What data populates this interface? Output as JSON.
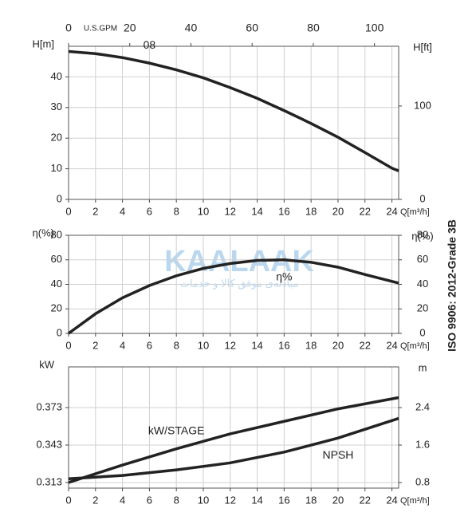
{
  "chart_data": [
    {
      "type": "line",
      "y_label": "H[m]",
      "y2_label": "H[ft]",
      "x_label": "Q[m³/h]",
      "x2_label": "U.S.GPM",
      "xlim": [
        0,
        24.5
      ],
      "xticks": [
        0,
        2,
        4,
        6,
        8,
        10,
        12,
        14,
        16,
        18,
        20,
        22,
        24
      ],
      "x2lim": [
        0,
        107.9
      ],
      "x2ticks": [
        0,
        20,
        40,
        60,
        80,
        100
      ],
      "ylim": [
        0,
        50
      ],
      "yticks": [
        0,
        10,
        20,
        30,
        40
      ],
      "y2lim": [
        0,
        164
      ],
      "y2ticks": [
        0,
        100
      ],
      "grid": true,
      "x": [
        0,
        2,
        4,
        6,
        8,
        10,
        12,
        14,
        16,
        18,
        20,
        22,
        24,
        24.5
      ],
      "series": [
        {
          "name": "08",
          "color": "#222222",
          "values": [
            48.3,
            47.6,
            46.3,
            44.5,
            42.3,
            39.7,
            36.5,
            33,
            29,
            24.8,
            20.3,
            15.3,
            10.2,
            9.3
          ]
        }
      ]
    },
    {
      "type": "line",
      "y_label": "η(%)",
      "y2_label": "η(%)",
      "x_label": "Q[m³/h]",
      "xlim": [
        0,
        24.5
      ],
      "xticks": [
        0,
        2,
        4,
        6,
        8,
        10,
        12,
        14,
        16,
        18,
        20,
        22,
        24
      ],
      "ylim": [
        0,
        80
      ],
      "yticks": [
        0,
        20,
        40,
        60,
        80
      ],
      "y2lim": [
        0,
        80
      ],
      "y2ticks": [
        0,
        20,
        40,
        60,
        80
      ],
      "grid": true,
      "x": [
        0,
        2,
        4,
        6,
        8,
        10,
        12,
        14,
        16,
        18,
        20,
        22,
        24.5
      ],
      "series": [
        {
          "name": "η%",
          "color": "#222222",
          "values": [
            0,
            16,
            29,
            39,
            47,
            53,
            57,
            59.5,
            60,
            58,
            54,
            48,
            41
          ]
        }
      ]
    },
    {
      "type": "line",
      "y_label": "kW",
      "y2_label": "m",
      "x_label": "Q[m³/h]",
      "xlim": [
        0,
        24.5
      ],
      "xticks": [
        0,
        2,
        4,
        6,
        8,
        10,
        12,
        14,
        16,
        18,
        20,
        22,
        24
      ],
      "ylim": [
        0.3085,
        0.4056
      ],
      "yticks": [
        0.313,
        0.343,
        0.373
      ],
      "y2lim": [
        0.68,
        3.27
      ],
      "y2ticks": [
        0.8,
        1.6,
        2.4
      ],
      "grid": true,
      "x": [
        0,
        4,
        8,
        12,
        16,
        20,
        24.5
      ],
      "series": [
        {
          "name": "kW/STAGE",
          "color": "#222222",
          "values": [
            0.313,
            0.327,
            0.34,
            0.352,
            0.362,
            0.372,
            0.381
          ]
        },
        {
          "name": "NPSH",
          "color": "#222222",
          "axis": "y2",
          "values": [
            0.88,
            0.95,
            1.07,
            1.22,
            1.45,
            1.75,
            2.17
          ]
        }
      ]
    }
  ],
  "side_note": "ISO 9906: 2012-Grade 3B",
  "watermark": {
    "brand": "KAALAAK",
    "tagline": "مبادله‌ی موفق کالا و خدمات"
  }
}
